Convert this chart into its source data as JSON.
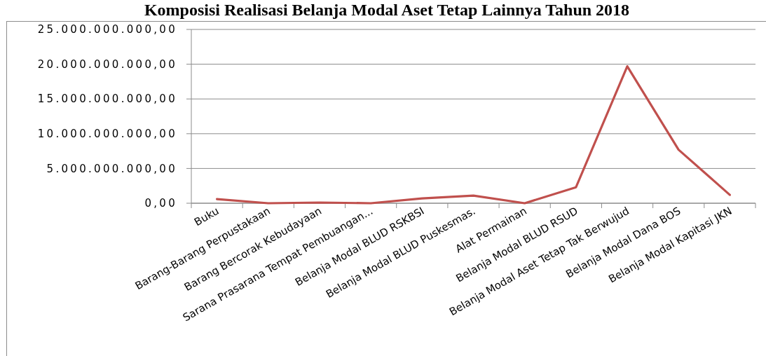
{
  "chart_data": {
    "type": "line",
    "title": "Komposisi Realisasi Belanja Modal Aset Tetap Lainnya Tahun 2018",
    "categories": [
      "Buku",
      "Barang-Barang Perpustakaan",
      "Barang Bercorak Kebudayaan",
      "Sarana Prasarana Tempat Pembuangan...",
      "Belanja Modal BLUD RSKBSI",
      "Belanja Modal BLUD Puskesmas.",
      "Alat Permainan",
      "Belanja Modal BLUD RSUD",
      "Belanja Modal Aset Tetap Tak Berwujud",
      "Belanja Modal Dana BOS",
      "Belanja Modal Kapitasi JKN"
    ],
    "series": [
      {
        "color": "#c0504d",
        "values": [
          600000000,
          0,
          100000000,
          0,
          700000000,
          1100000000,
          0,
          2300000000,
          19700000000,
          7700000000,
          1200000000
        ]
      }
    ],
    "ylim": [
      0,
      25000000000
    ],
    "yticks": [
      {
        "value": 0,
        "label": "0,00"
      },
      {
        "value": 5000000000,
        "label": "5.000.000.000,00"
      },
      {
        "value": 10000000000,
        "label": "10.000.000.000,00"
      },
      {
        "value": 15000000000,
        "label": "15.000.000.000,00"
      },
      {
        "value": 20000000000,
        "label": "20.000.000.000,00"
      },
      {
        "value": 25000000000,
        "label": "25.000.000.000,00"
      }
    ],
    "grid": "y"
  }
}
